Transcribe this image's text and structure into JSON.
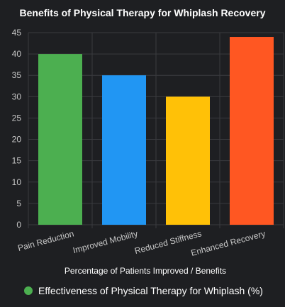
{
  "chart_data": {
    "type": "bar",
    "title": "Benefits of Physical Therapy for Whiplash Recovery",
    "xlabel": "Percentage of Patients Improved / Benefits",
    "ylabel": "",
    "categories": [
      "Pain Reduction",
      "Improved Mobility",
      "Reduced Stiffness",
      "Enhanced Recovery"
    ],
    "series": [
      {
        "name": "Effectiveness of Physical Therapy for Whiplash (%)",
        "values": [
          40,
          35,
          30,
          44
        ]
      }
    ],
    "bar_colors": [
      "#4caf50",
      "#2196f3",
      "#ffc107",
      "#ff5722"
    ],
    "legend_color": "#4caf50",
    "ylim": [
      0,
      45
    ],
    "yticks": [
      0,
      5,
      10,
      15,
      20,
      25,
      30,
      35,
      40,
      45
    ],
    "grid": true,
    "legend_position": "bottom"
  }
}
